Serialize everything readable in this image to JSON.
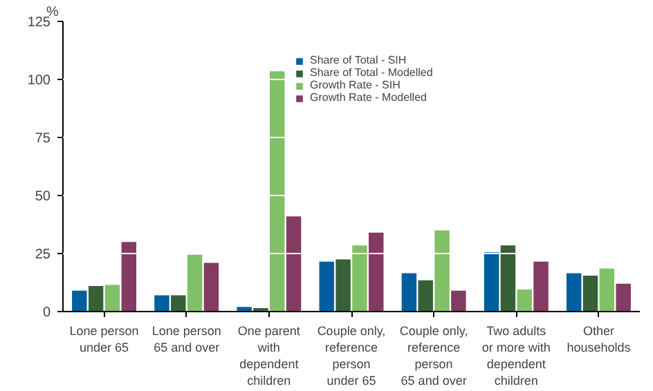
{
  "chart_data": {
    "type": "bar",
    "ylabel": "%",
    "categories": [
      "Lone person\nunder 65",
      "Lone person\n65 and over",
      "One parent\nwith\ndependent\nchildren",
      "Couple only,\nreference\nperson\nunder 65",
      "Couple only,\nreference\nperson\n65 and over",
      "Two adults\nor more with\ndependent\nchildren",
      "Other\nhouseholds"
    ],
    "series": [
      {
        "name": "Share of Total - SIH",
        "color": "#005f9e",
        "values": [
          9,
          7,
          2,
          21.5,
          16.5,
          25.5,
          16.5
        ]
      },
      {
        "name": "Share of Total - Modelled",
        "color": "#376037",
        "values": [
          11,
          7,
          1.5,
          22.5,
          13.5,
          28.5,
          15.5
        ]
      },
      {
        "name": "Growth Rate - SIH",
        "color": "#80c066",
        "values": [
          11.5,
          24.5,
          103.5,
          28.5,
          35,
          9.5,
          18.5
        ]
      },
      {
        "name": "Growth Rate - Modelled",
        "color": "#833a63",
        "values": [
          30,
          21,
          41,
          34,
          9,
          21.5,
          12
        ]
      }
    ],
    "ylim": [
      0,
      125
    ],
    "yticks": [
      0,
      25,
      50,
      75,
      100,
      125
    ],
    "grid": "y",
    "legend": "top"
  }
}
